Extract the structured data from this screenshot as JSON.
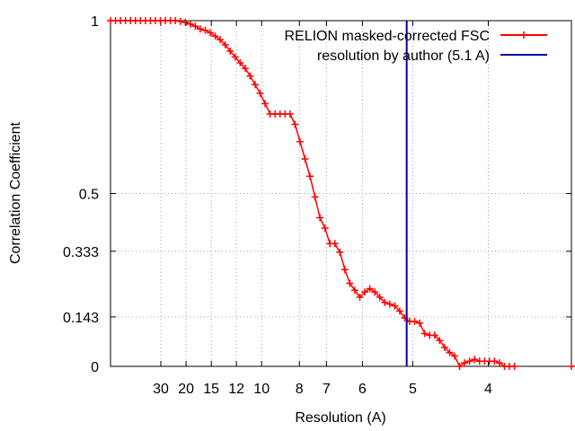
{
  "chart_data": {
    "type": "line",
    "xlabel": "Resolution (A)",
    "ylabel": "Correlation Coefficient",
    "xlim": [
      0,
      0.305
    ],
    "ylim": [
      0,
      1
    ],
    "x_ticks": [
      {
        "label": "30",
        "value": 0.0333
      },
      {
        "label": "20",
        "value": 0.05
      },
      {
        "label": "15",
        "value": 0.0667
      },
      {
        "label": "12",
        "value": 0.0833
      },
      {
        "label": "10",
        "value": 0.1
      },
      {
        "label": "8",
        "value": 0.125
      },
      {
        "label": "7",
        "value": 0.1429
      },
      {
        "label": "6",
        "value": 0.1667
      },
      {
        "label": "5",
        "value": 0.2
      },
      {
        "label": "4",
        "value": 0.25
      }
    ],
    "y_ticks": [
      {
        "label": "0",
        "value": 0
      },
      {
        "label": "0.143",
        "value": 0.143
      },
      {
        "label": "0.333",
        "value": 0.333
      },
      {
        "label": "0.5",
        "value": 0.5
      },
      {
        "label": "1",
        "value": 1
      }
    ],
    "grid": true,
    "legend_position": "top-right",
    "colors": {
      "fsc": "#ff0000",
      "resolution": "#0000a0"
    },
    "series": [
      {
        "name": "RELION masked-corrected FSC",
        "x": [
          0.0,
          0.0033,
          0.0066,
          0.0099,
          0.0132,
          0.0165,
          0.0198,
          0.0231,
          0.0264,
          0.0297,
          0.033,
          0.0363,
          0.0396,
          0.0429,
          0.0462,
          0.0495,
          0.0528,
          0.0561,
          0.0594,
          0.0627,
          0.066,
          0.0693,
          0.0726,
          0.0759,
          0.0792,
          0.0825,
          0.0858,
          0.0891,
          0.0924,
          0.0957,
          0.099,
          0.1023,
          0.1056,
          0.1089,
          0.1122,
          0.1155,
          0.1188,
          0.1221,
          0.1254,
          0.1287,
          0.132,
          0.1353,
          0.1386,
          0.1419,
          0.1452,
          0.1485,
          0.1518,
          0.1551,
          0.1584,
          0.1617,
          0.165,
          0.1683,
          0.1716,
          0.1749,
          0.1782,
          0.1815,
          0.1848,
          0.1881,
          0.1914,
          0.1947,
          0.198,
          0.2013,
          0.2046,
          0.2079,
          0.2112,
          0.2145,
          0.2178,
          0.2211,
          0.2244,
          0.2277,
          0.231,
          0.2343,
          0.2376,
          0.2409,
          0.2442,
          0.2475,
          0.2508,
          0.2541,
          0.2574,
          0.2607,
          0.264,
          0.2673,
          0.305
        ],
        "y": [
          1.0,
          1.0,
          1.0,
          1.0,
          1.0,
          1.0,
          1.0,
          1.0,
          1.0,
          1.0,
          1.0,
          1.0,
          1.0,
          1.0,
          0.998,
          0.995,
          0.99,
          0.984,
          0.976,
          0.972,
          0.965,
          0.955,
          0.945,
          0.93,
          0.912,
          0.895,
          0.878,
          0.862,
          0.84,
          0.815,
          0.79,
          0.76,
          0.73,
          0.73,
          0.73,
          0.73,
          0.73,
          0.7,
          0.65,
          0.6,
          0.55,
          0.49,
          0.43,
          0.4,
          0.355,
          0.355,
          0.33,
          0.28,
          0.24,
          0.22,
          0.2,
          0.215,
          0.225,
          0.215,
          0.2,
          0.185,
          0.18,
          0.175,
          0.16,
          0.14,
          0.13,
          0.13,
          0.125,
          0.095,
          0.09,
          0.09,
          0.075,
          0.055,
          0.04,
          0.03,
          0.0,
          0.01,
          0.015,
          0.02,
          0.015,
          0.015,
          0.015,
          0.015,
          0.01,
          0.0,
          0.0,
          0.0,
          0.0
        ]
      },
      {
        "name": "resolution by author (5.1 A)",
        "x": [
          0.196,
          0.196
        ],
        "y": [
          0,
          1
        ]
      }
    ]
  }
}
